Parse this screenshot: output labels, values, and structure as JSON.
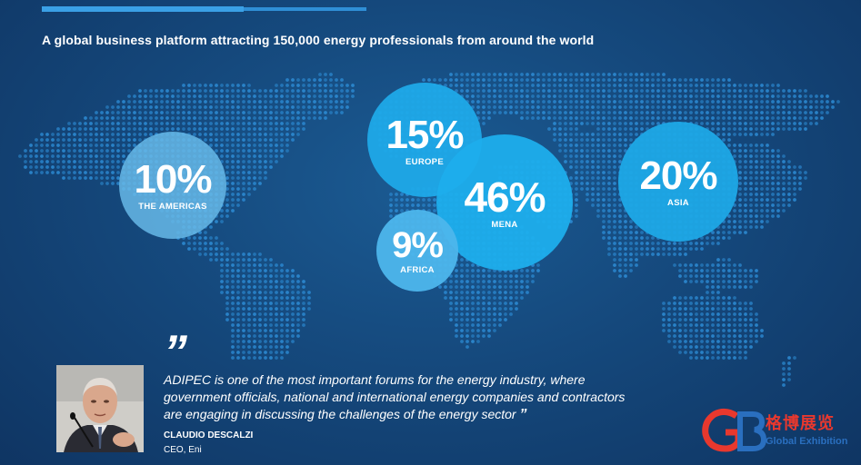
{
  "headline": "A global business platform attracting 150,000 energy professionals from around the world",
  "regions": [
    {
      "pct": "10%",
      "label": "THE AMERICAS"
    },
    {
      "pct": "15%",
      "label": "EUROPE"
    },
    {
      "pct": "46%",
      "label": "MENA"
    },
    {
      "pct": "9%",
      "label": "AFRICA"
    },
    {
      "pct": "20%",
      "label": "ASIA"
    }
  ],
  "quote": {
    "text": "ADIPEC is one of the most important forums for the energy industry, where government officials, national and international energy companies and contractors are engaging in discussing the challenges of the energy sector",
    "open_mark": "”",
    "close_mark": "”",
    "author": "CLAUDIO DESCALZI",
    "role": "CEO, Eni"
  },
  "watermark": {
    "letters": "GB",
    "cn": "格博展览",
    "en": "Global Exhibition"
  },
  "colors": {
    "bg_dark": "#0f3563",
    "bg_light": "#1b5b93",
    "dot": "#2e8fd9",
    "bubble": "#1da9e8",
    "accent_bar": "#3aa0e6",
    "logo_red": "#e8382e",
    "logo_blue": "#2a6fbf"
  }
}
